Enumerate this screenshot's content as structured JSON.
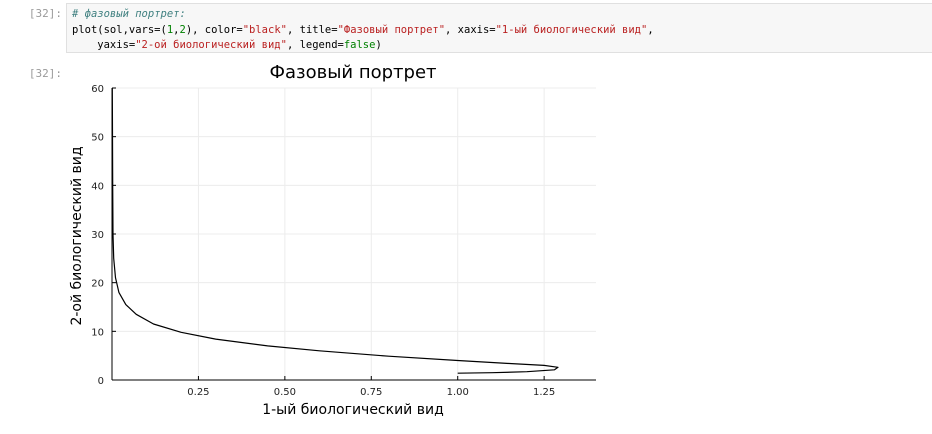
{
  "input_prompt": "[32]:",
  "output_prompt": "[32]:",
  "code": {
    "comment": "# фазовый портрет:",
    "line2_a": "plot(sol,vars=(",
    "line2_n1": "1",
    "line2_b": ",",
    "line2_n2": "2",
    "line2_c": "), color=",
    "line2_s1": "\"black\"",
    "line2_d": ", title=",
    "line2_s2": "\"Фазовый портрет\"",
    "line2_e": ", xaxis=",
    "line2_s3": "\"1-ый биологический вид\"",
    "line2_f": ",",
    "line3_a": "    yaxis=",
    "line3_s1": "\"2-ой биологический вид\"",
    "line3_b": ", legend=",
    "line3_kw": "false",
    "line3_c": ")"
  },
  "chart_data": {
    "type": "line",
    "title": "Фазовый портрет",
    "xlabel": "1-ый биологический вид",
    "ylabel": "2-ой биологический вид",
    "xlim": [
      0,
      1.4
    ],
    "ylim": [
      0,
      60
    ],
    "xticks": [
      "0.25",
      "0.50",
      "0.75",
      "1.00",
      "1.25"
    ],
    "xtick_values": [
      0.25,
      0.5,
      0.75,
      1.0,
      1.25
    ],
    "yticks": [
      "0",
      "10",
      "20",
      "30",
      "40",
      "50",
      "60"
    ],
    "ytick_values": [
      0,
      10,
      20,
      30,
      40,
      50,
      60
    ],
    "grid": true,
    "legend": false,
    "line_color": "#000000",
    "series": [
      {
        "x": [
          1.0,
          1.1,
          1.2,
          1.28,
          1.29,
          1.25,
          1.15,
          1.0,
          0.8,
          0.6,
          0.45,
          0.3,
          0.2,
          0.12,
          0.07,
          0.04,
          0.02,
          0.01,
          0.005,
          0.003,
          0.002,
          0.001
        ],
        "y": [
          1.4,
          1.5,
          1.7,
          2.1,
          2.6,
          3.0,
          3.4,
          4.0,
          4.9,
          6.0,
          7.0,
          8.4,
          9.8,
          11.5,
          13.5,
          15.5,
          18.0,
          21.0,
          25.0,
          30.0,
          40.0,
          60.0
        ]
      }
    ]
  }
}
